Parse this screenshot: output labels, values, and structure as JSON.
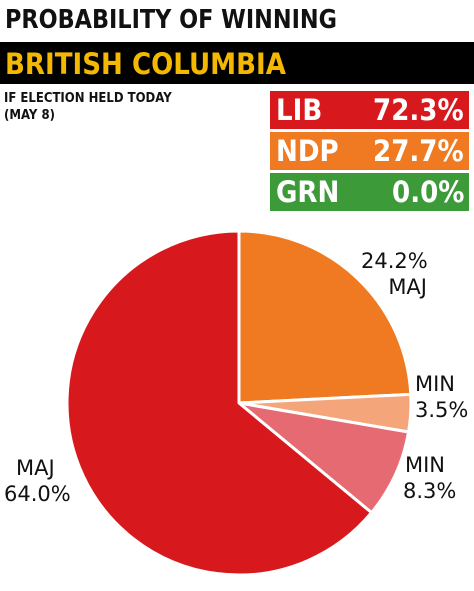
{
  "header": {
    "title": "PROBABILITY OF WINNING",
    "region": "BRITISH COLUMBIA",
    "note_line1": "IF ELECTION HELD TODAY",
    "note_line2": "(MAY 8)"
  },
  "parties": [
    {
      "name": "LIB",
      "value": "72.3%",
      "color": "#d7191e"
    },
    {
      "name": "NDP",
      "value": "27.7%",
      "color": "#f07a22"
    },
    {
      "name": "GRN",
      "value": "0.0%",
      "color": "#3c9a38"
    }
  ],
  "chart_data": {
    "type": "pie",
    "title": "PROBABILITY OF WINNING",
    "slices": [
      {
        "party": "NDP",
        "label": "MAJ",
        "value": 24.2,
        "display": "24.2%",
        "color": "#f07a22"
      },
      {
        "party": "NDP",
        "label": "MIN",
        "value": 3.5,
        "display": "3.5%",
        "color": "#f5a57a"
      },
      {
        "party": "LIB",
        "label": "MIN",
        "value": 8.3,
        "display": "8.3%",
        "color": "#e56a72"
      },
      {
        "party": "LIB",
        "label": "MAJ",
        "value": 64.0,
        "display": "64.0%",
        "color": "#d7191e"
      }
    ],
    "start": "12 o'clock, clockwise"
  }
}
